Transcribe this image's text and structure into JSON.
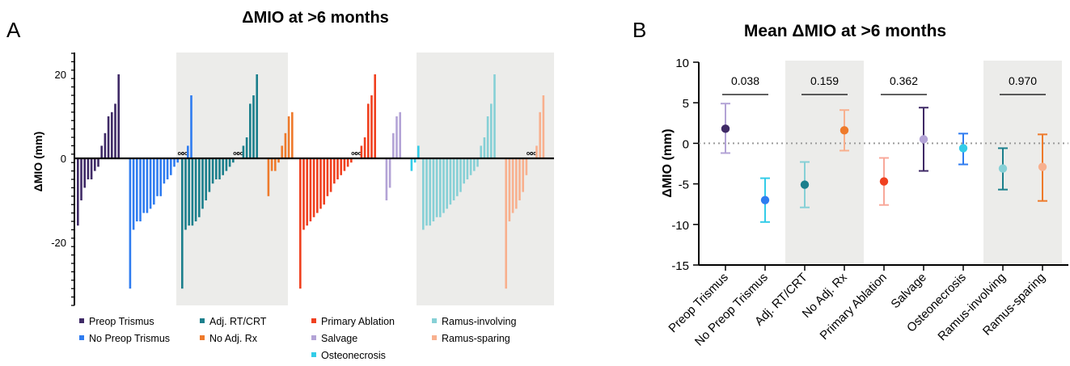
{
  "chart_data": [
    {
      "type": "bar",
      "panel": "A",
      "title": "ΔMIO at >6 months",
      "ylabel": "ΔMIO (mm)",
      "xlabel": "",
      "ylim": [
        -35,
        25
      ],
      "yticks": [
        20,
        0,
        -20
      ],
      "grid": false,
      "legend_position": "bottom",
      "shaded_sections": [
        2,
        4
      ],
      "sections": [
        {
          "series": [
            {
              "name": "Preop Trismus",
              "color": "#3f2a66",
              "values": [
                -16,
                -10,
                -7,
                -5,
                -5,
                -3,
                -2,
                3,
                6,
                10,
                11,
                13,
                20
              ]
            },
            {
              "name": "No Preop Trismus",
              "color": "#2f7cf0",
              "values": [
                -31,
                -17,
                -15,
                -15,
                -13,
                -13,
                -12,
                -11,
                -9,
                -9,
                -6,
                -5,
                -4,
                -2,
                -1,
                0,
                0,
                3,
                15
              ]
            }
          ]
        },
        {
          "series": [
            {
              "name": "Adj. RT/CRT",
              "color": "#1b7f8c",
              "values": [
                -31,
                -17,
                -16,
                -16,
                -15,
                -14,
                -12,
                -10,
                -8,
                -6,
                -5,
                -5,
                -4,
                -3,
                -2,
                -1,
                0,
                0,
                3,
                5,
                13,
                15,
                20
              ]
            },
            {
              "name": "No Adj. Rx",
              "color": "#ee7a2b",
              "values": [
                -9,
                -3,
                -3,
                -1,
                3,
                6,
                10,
                11
              ]
            }
          ]
        },
        {
          "series": [
            {
              "name": "Primary Ablation",
              "color": "#f0401f",
              "values": [
                -31,
                -17,
                -16,
                -15,
                -14,
                -13,
                -12,
                -11,
                -9,
                -8,
                -6,
                -5,
                -4,
                -3,
                -2,
                -1,
                0,
                0,
                3,
                5,
                13,
                15,
                20
              ]
            },
            {
              "name": "Salvage",
              "color": "#b3a3d6",
              "values": [
                -10,
                -7,
                6,
                10,
                11
              ]
            },
            {
              "name": "Osteonecrosis",
              "color": "#33cce8",
              "values": [
                -3,
                -1,
                3
              ]
            }
          ]
        },
        {
          "series": [
            {
              "name": "Ramus-involving",
              "color": "#86d0d6",
              "values": [
                -17,
                -16,
                -16,
                -15,
                -14,
                -14,
                -13,
                -12,
                -11,
                -10,
                -9,
                -8,
                -6,
                -5,
                -4,
                -3,
                -2,
                3,
                5,
                10,
                13,
                20
              ]
            },
            {
              "name": "Ramus-sparing",
              "color": "#f8b08e",
              "values": [
                -31,
                -15,
                -13,
                -12,
                -10,
                -8,
                -4,
                0,
                0,
                3,
                11,
                15
              ]
            }
          ]
        }
      ]
    },
    {
      "type": "scatter",
      "panel": "B",
      "title": "Mean ΔMIO at >6 months",
      "ylabel": "ΔMIO (mm)",
      "xlabel": "",
      "ylim": [
        -15,
        10
      ],
      "yticks": [
        10,
        5,
        0,
        -5,
        -10,
        -15
      ],
      "grid": false,
      "reference_line": 0,
      "shaded_categories": [
        2,
        3,
        7,
        8
      ],
      "categories": [
        "Preop Trismus",
        "No Preop Trismus",
        "Adj. RT/CRT",
        "No Adj. Rx",
        "Primary Ablation",
        "Salvage",
        "Osteonecrosis",
        "Ramus-involving",
        "Ramus-sparing"
      ],
      "series": [
        {
          "means": [
            1.8,
            -7.0,
            -5.1,
            1.6,
            -4.7,
            0.5,
            -0.6,
            -3.1,
            -2.9
          ],
          "err_lower": [
            -1.2,
            -9.7,
            -7.9,
            -0.9,
            -7.6,
            -3.4,
            -2.6,
            -5.7,
            -7.1
          ],
          "err_upper": [
            4.9,
            -4.3,
            -2.3,
            4.1,
            -1.8,
            4.4,
            1.2,
            -0.6,
            1.1
          ],
          "point_colors": [
            "#3f2a66",
            "#2f7cf0",
            "#1b7f8c",
            "#ee7a2b",
            "#f0401f",
            "#b3a3d6",
            "#33cce8",
            "#86d0d6",
            "#f8b08e"
          ],
          "bar_colors": [
            "#b3a3d6",
            "#33cce8",
            "#86d0d6",
            "#f8b08e",
            "#f8a89a",
            "#3f2a66",
            "#2f7cf0",
            "#1b7f8c",
            "#ee7a2b"
          ]
        }
      ],
      "annotations": [
        {
          "text": "0.038",
          "from": 0,
          "to": 1
        },
        {
          "text": "0.159",
          "from": 2,
          "to": 3
        },
        {
          "text": "0.362",
          "from": 4,
          "to": 5
        },
        {
          "text": "0.970",
          "from": 7,
          "to": 8
        }
      ]
    }
  ],
  "panel_labels": {
    "a": "A",
    "b": "B"
  },
  "overlap_marker": "oo"
}
